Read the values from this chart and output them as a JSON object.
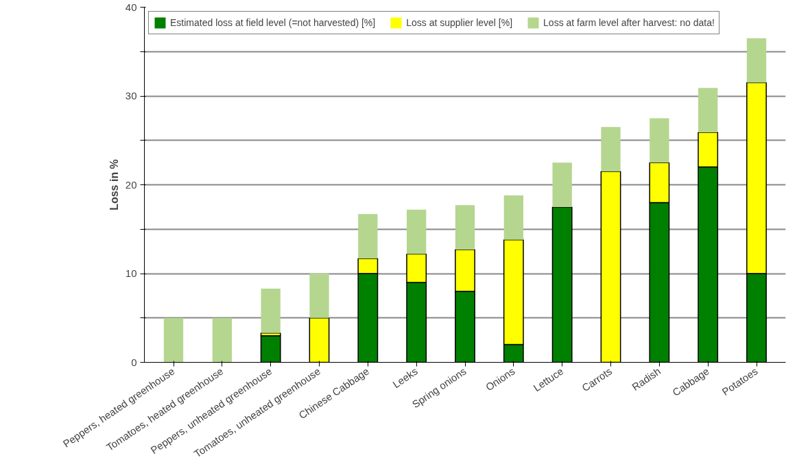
{
  "chart_data": {
    "type": "bar",
    "stacked": true,
    "ylabel": "Loss in %",
    "categories": [
      "Peppers, heated greenhouse",
      "Tomatoes, heated greenhouse",
      "Peppers, unheated greenhouse",
      "Tomatoes, unheated greenhouse",
      "Chinese Cabbage",
      "Leeks",
      "Spring onions",
      "Onions",
      "Lettuce",
      "Carrots",
      "Radish",
      "Cabbage",
      "Potatoes"
    ],
    "series": [
      {
        "name": "Estimated loss at field level (=not harvested) [%]",
        "color": "#008000",
        "values": [
          0,
          0,
          3,
          0,
          10,
          9,
          8,
          2,
          17.5,
          0,
          18,
          22,
          10
        ]
      },
      {
        "name": "Loss at supplier level [%]",
        "color": "#ffff00",
        "values": [
          0,
          0,
          0.3,
          5,
          1.7,
          3.2,
          4.7,
          11.8,
          0,
          21.5,
          4.5,
          3.9,
          21.5
        ]
      },
      {
        "name": "Loss at farm level after harvest: no data!",
        "color": "#b5d68f",
        "values": [
          5,
          5,
          5,
          5,
          5,
          5,
          5,
          5,
          5,
          5,
          5,
          5,
          5
        ]
      }
    ],
    "ylim": [
      0,
      40
    ],
    "yticks": [
      0,
      {
        "value": 5,
        "label": null
      },
      10,
      {
        "value": 15,
        "label": null
      },
      20,
      {
        "value": 25,
        "label": null
      },
      30,
      {
        "value": 35,
        "label": null
      },
      40
    ],
    "grid": "y",
    "legend": "top"
  }
}
